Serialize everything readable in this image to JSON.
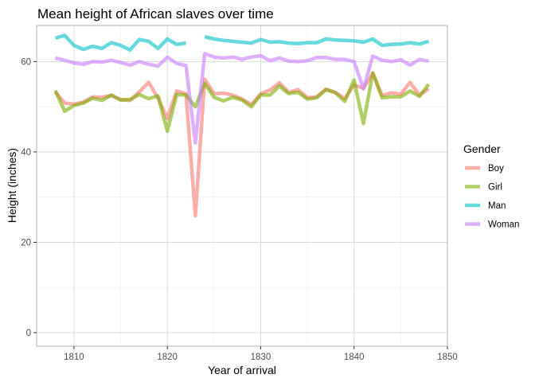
{
  "chart_data": {
    "type": "line",
    "title": "Mean height of African slaves over time",
    "xlabel": "Year of arrival",
    "ylabel": "Height (inches)",
    "xlim": [
      1806,
      1850
    ],
    "ylim": [
      -3,
      68
    ],
    "x_ticks": [
      1810,
      1820,
      1830,
      1840,
      1850
    ],
    "y_ticks": [
      0,
      20,
      40,
      60
    ],
    "grid": true,
    "legend": {
      "title": "Gender",
      "position": "right"
    },
    "series": [
      {
        "name": "Boy",
        "color": "#F8766D",
        "x": [
          1808,
          1809,
          1810,
          1811,
          1812,
          1813,
          1814,
          1815,
          1816,
          1817,
          1818,
          1819,
          1820,
          1821,
          1822,
          1823,
          1824,
          1825,
          1826,
          1827,
          1828,
          1829,
          1830,
          1831,
          1832,
          1833,
          1834,
          1835,
          1836,
          1837,
          1838,
          1839,
          1840,
          1841,
          1842,
          1843,
          1844,
          1845,
          1846,
          1847,
          1848
        ],
        "y": [
          53.3,
          50.8,
          50.6,
          51.0,
          52.2,
          52.1,
          52.5,
          51.6,
          51.4,
          53.3,
          55.4,
          51.9,
          47.4,
          53.5,
          52.9,
          25.9,
          56.1,
          52.9,
          53.0,
          52.6,
          51.7,
          50.5,
          52.9,
          53.7,
          55.3,
          53.2,
          53.8,
          52.0,
          52.2,
          53.9,
          53.2,
          51.8,
          54.8,
          54.1,
          57.4,
          52.5,
          53.1,
          52.8,
          55.4,
          52.6,
          54.0
        ]
      },
      {
        "name": "Girl",
        "color": "#7CAE00",
        "x": [
          1808,
          1809,
          1810,
          1811,
          1812,
          1813,
          1814,
          1815,
          1816,
          1817,
          1818,
          1819,
          1820,
          1821,
          1822,
          1823,
          1824,
          1825,
          1826,
          1827,
          1828,
          1829,
          1830,
          1831,
          1832,
          1833,
          1834,
          1835,
          1836,
          1837,
          1838,
          1839,
          1840,
          1841,
          1842,
          1843,
          1844,
          1845,
          1846,
          1847,
          1848
        ],
        "y": [
          53.6,
          49.0,
          50.3,
          50.8,
          51.9,
          51.4,
          52.6,
          51.5,
          51.6,
          52.7,
          51.8,
          52.4,
          44.6,
          52.7,
          52.6,
          50.0,
          55.2,
          52.1,
          51.3,
          52.1,
          51.5,
          50.0,
          52.6,
          52.6,
          54.6,
          52.9,
          53.2,
          51.7,
          52.0,
          53.8,
          53.1,
          51.2,
          55.9,
          46.3,
          57.5,
          52.0,
          52.2,
          52.2,
          53.5,
          52.3,
          55.0
        ]
      },
      {
        "name": "Man",
        "color": "#00BFC4",
        "x": [
          1808,
          1809,
          1810,
          1811,
          1812,
          1813,
          1814,
          1815,
          1816,
          1817,
          1818,
          1819,
          1820,
          1821,
          1822,
          null,
          1824,
          1825,
          1826,
          1827,
          1828,
          1829,
          1830,
          1831,
          1832,
          1833,
          1834,
          1835,
          1836,
          1837,
          1838,
          1839,
          1840,
          1841,
          1842,
          1843,
          1844,
          1845,
          1846,
          1847,
          1848
        ],
        "y": [
          65.2,
          65.8,
          63.6,
          62.7,
          63.4,
          62.9,
          64.2,
          63.6,
          62.6,
          64.9,
          64.5,
          62.9,
          65.0,
          63.8,
          64.1,
          null,
          65.5,
          65.0,
          64.7,
          64.5,
          64.3,
          64.1,
          64.9,
          64.3,
          64.4,
          64.1,
          64.0,
          64.2,
          64.2,
          65.0,
          64.8,
          64.7,
          64.6,
          64.3,
          65.0,
          63.6,
          63.8,
          63.9,
          64.2,
          63.9,
          64.5
        ]
      },
      {
        "name": "Woman",
        "color": "#C77CFF",
        "x": [
          1808,
          1809,
          1810,
          1811,
          1812,
          1813,
          1814,
          1815,
          1816,
          1817,
          1818,
          1819,
          1820,
          1821,
          1822,
          1823,
          1824,
          1825,
          1826,
          1827,
          1828,
          1829,
          1830,
          1831,
          1832,
          1833,
          1834,
          1835,
          1836,
          1837,
          1838,
          1839,
          1840,
          1841,
          1842,
          1843,
          1844,
          1845,
          1846,
          1847,
          1848
        ],
        "y": [
          60.8,
          60.3,
          59.7,
          59.4,
          60.0,
          59.9,
          60.3,
          59.8,
          59.2,
          60.0,
          59.4,
          59.0,
          61.0,
          59.6,
          59.1,
          42.0,
          61.8,
          61.0,
          60.8,
          61.0,
          60.5,
          61.0,
          61.3,
          60.2,
          60.8,
          60.1,
          60.0,
          60.2,
          60.9,
          60.9,
          60.5,
          60.5,
          60.0,
          54.0,
          61.2,
          60.3,
          60.0,
          60.4,
          59.2,
          60.5,
          60.1
        ]
      }
    ]
  }
}
